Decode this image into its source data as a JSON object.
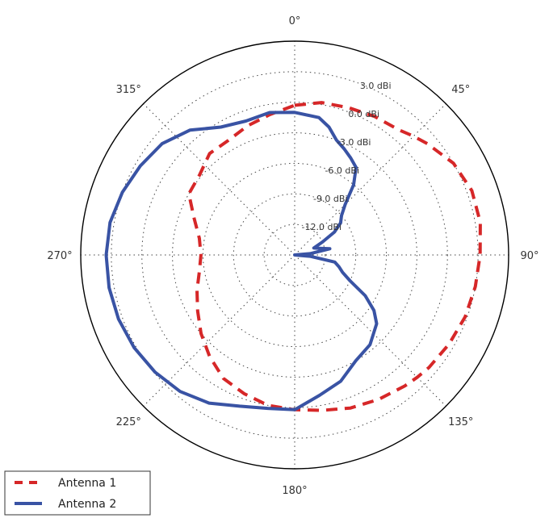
{
  "chart_data": {
    "type": "polar-line",
    "theta_direction": "clockwise",
    "theta_zero": "top",
    "angle_ticks": [
      "0°",
      "45°",
      "90°",
      "135°",
      "180°",
      "225°",
      "270°",
      "315°"
    ],
    "angle_tick_values": [
      0,
      45,
      90,
      135,
      180,
      225,
      270,
      315
    ],
    "radial_tick_labels": [
      "-12.0 dBi",
      "-9.0 dBi",
      "-6.0 dBi",
      "-3.0 dBi",
      "0.0 dBi",
      "3.0 dBi"
    ],
    "radial_tick_values": [
      -12,
      -9,
      -6,
      -3,
      0,
      3
    ],
    "r_range": [
      -15,
      6
    ],
    "grid": true,
    "legend_position": "bottom-left",
    "series": [
      {
        "name": "Antenna 1",
        "color": "#d62728",
        "style": "dashed",
        "theta": [
          0,
          10,
          20,
          30,
          40,
          45,
          50,
          60,
          70,
          80,
          90,
          100,
          110,
          120,
          130,
          135,
          140,
          150,
          160,
          170,
          180,
          190,
          200,
          210,
          220,
          230,
          240,
          250,
          260,
          270,
          280,
          290,
          300,
          310,
          320,
          330,
          340,
          350,
          360
        ],
        "r": [
          -0.3,
          0.2,
          0.4,
          0.7,
          1.0,
          1.5,
          2.0,
          3.0,
          3.5,
          3.5,
          3.2,
          3.0,
          2.8,
          2.5,
          2.2,
          2.0,
          1.8,
          1.4,
          1.0,
          0.5,
          0.2,
          0.0,
          -0.5,
          -1.0,
          -2.0,
          -3.0,
          -4.0,
          -4.8,
          -5.5,
          -5.8,
          -5.5,
          -4.5,
          -3.0,
          -2.8,
          -2.0,
          -2.0,
          -1.5,
          -1.0,
          -0.3
        ]
      },
      {
        "name": "Antenna 2",
        "color": "#3953a4",
        "style": "solid",
        "theta": [
          0,
          10,
          15,
          20,
          25,
          30,
          35,
          40,
          45,
          50,
          55,
          60,
          65,
          70,
          75,
          80,
          85,
          90,
          95,
          100,
          105,
          110,
          115,
          120,
          125,
          130,
          140,
          150,
          160,
          170,
          180,
          190,
          200,
          210,
          220,
          230,
          240,
          250,
          260,
          270,
          280,
          290,
          300,
          310,
          320,
          330,
          340,
          350,
          360
        ],
        "r": [
          -1.0,
          -1.3,
          -2.0,
          -3.0,
          -3.5,
          -4.0,
          -4.5,
          -6.0,
          -8.0,
          -9.0,
          -9.5,
          -10.5,
          -12.0,
          -13.0,
          -12.5,
          -11.5,
          -13.5,
          -15.0,
          -13.5,
          -11.0,
          -10.5,
          -10.0,
          -9.0,
          -7.0,
          -5.5,
          -4.5,
          -3.5,
          -3.0,
          -1.8,
          -1.0,
          0.2,
          0.3,
          0.8,
          1.8,
          2.5,
          2.9,
          3.2,
          3.4,
          3.5,
          3.5,
          3.4,
          3.0,
          2.5,
          2.0,
          1.0,
          -0.5,
          -1.0,
          -0.8,
          -1.0
        ]
      }
    ]
  }
}
